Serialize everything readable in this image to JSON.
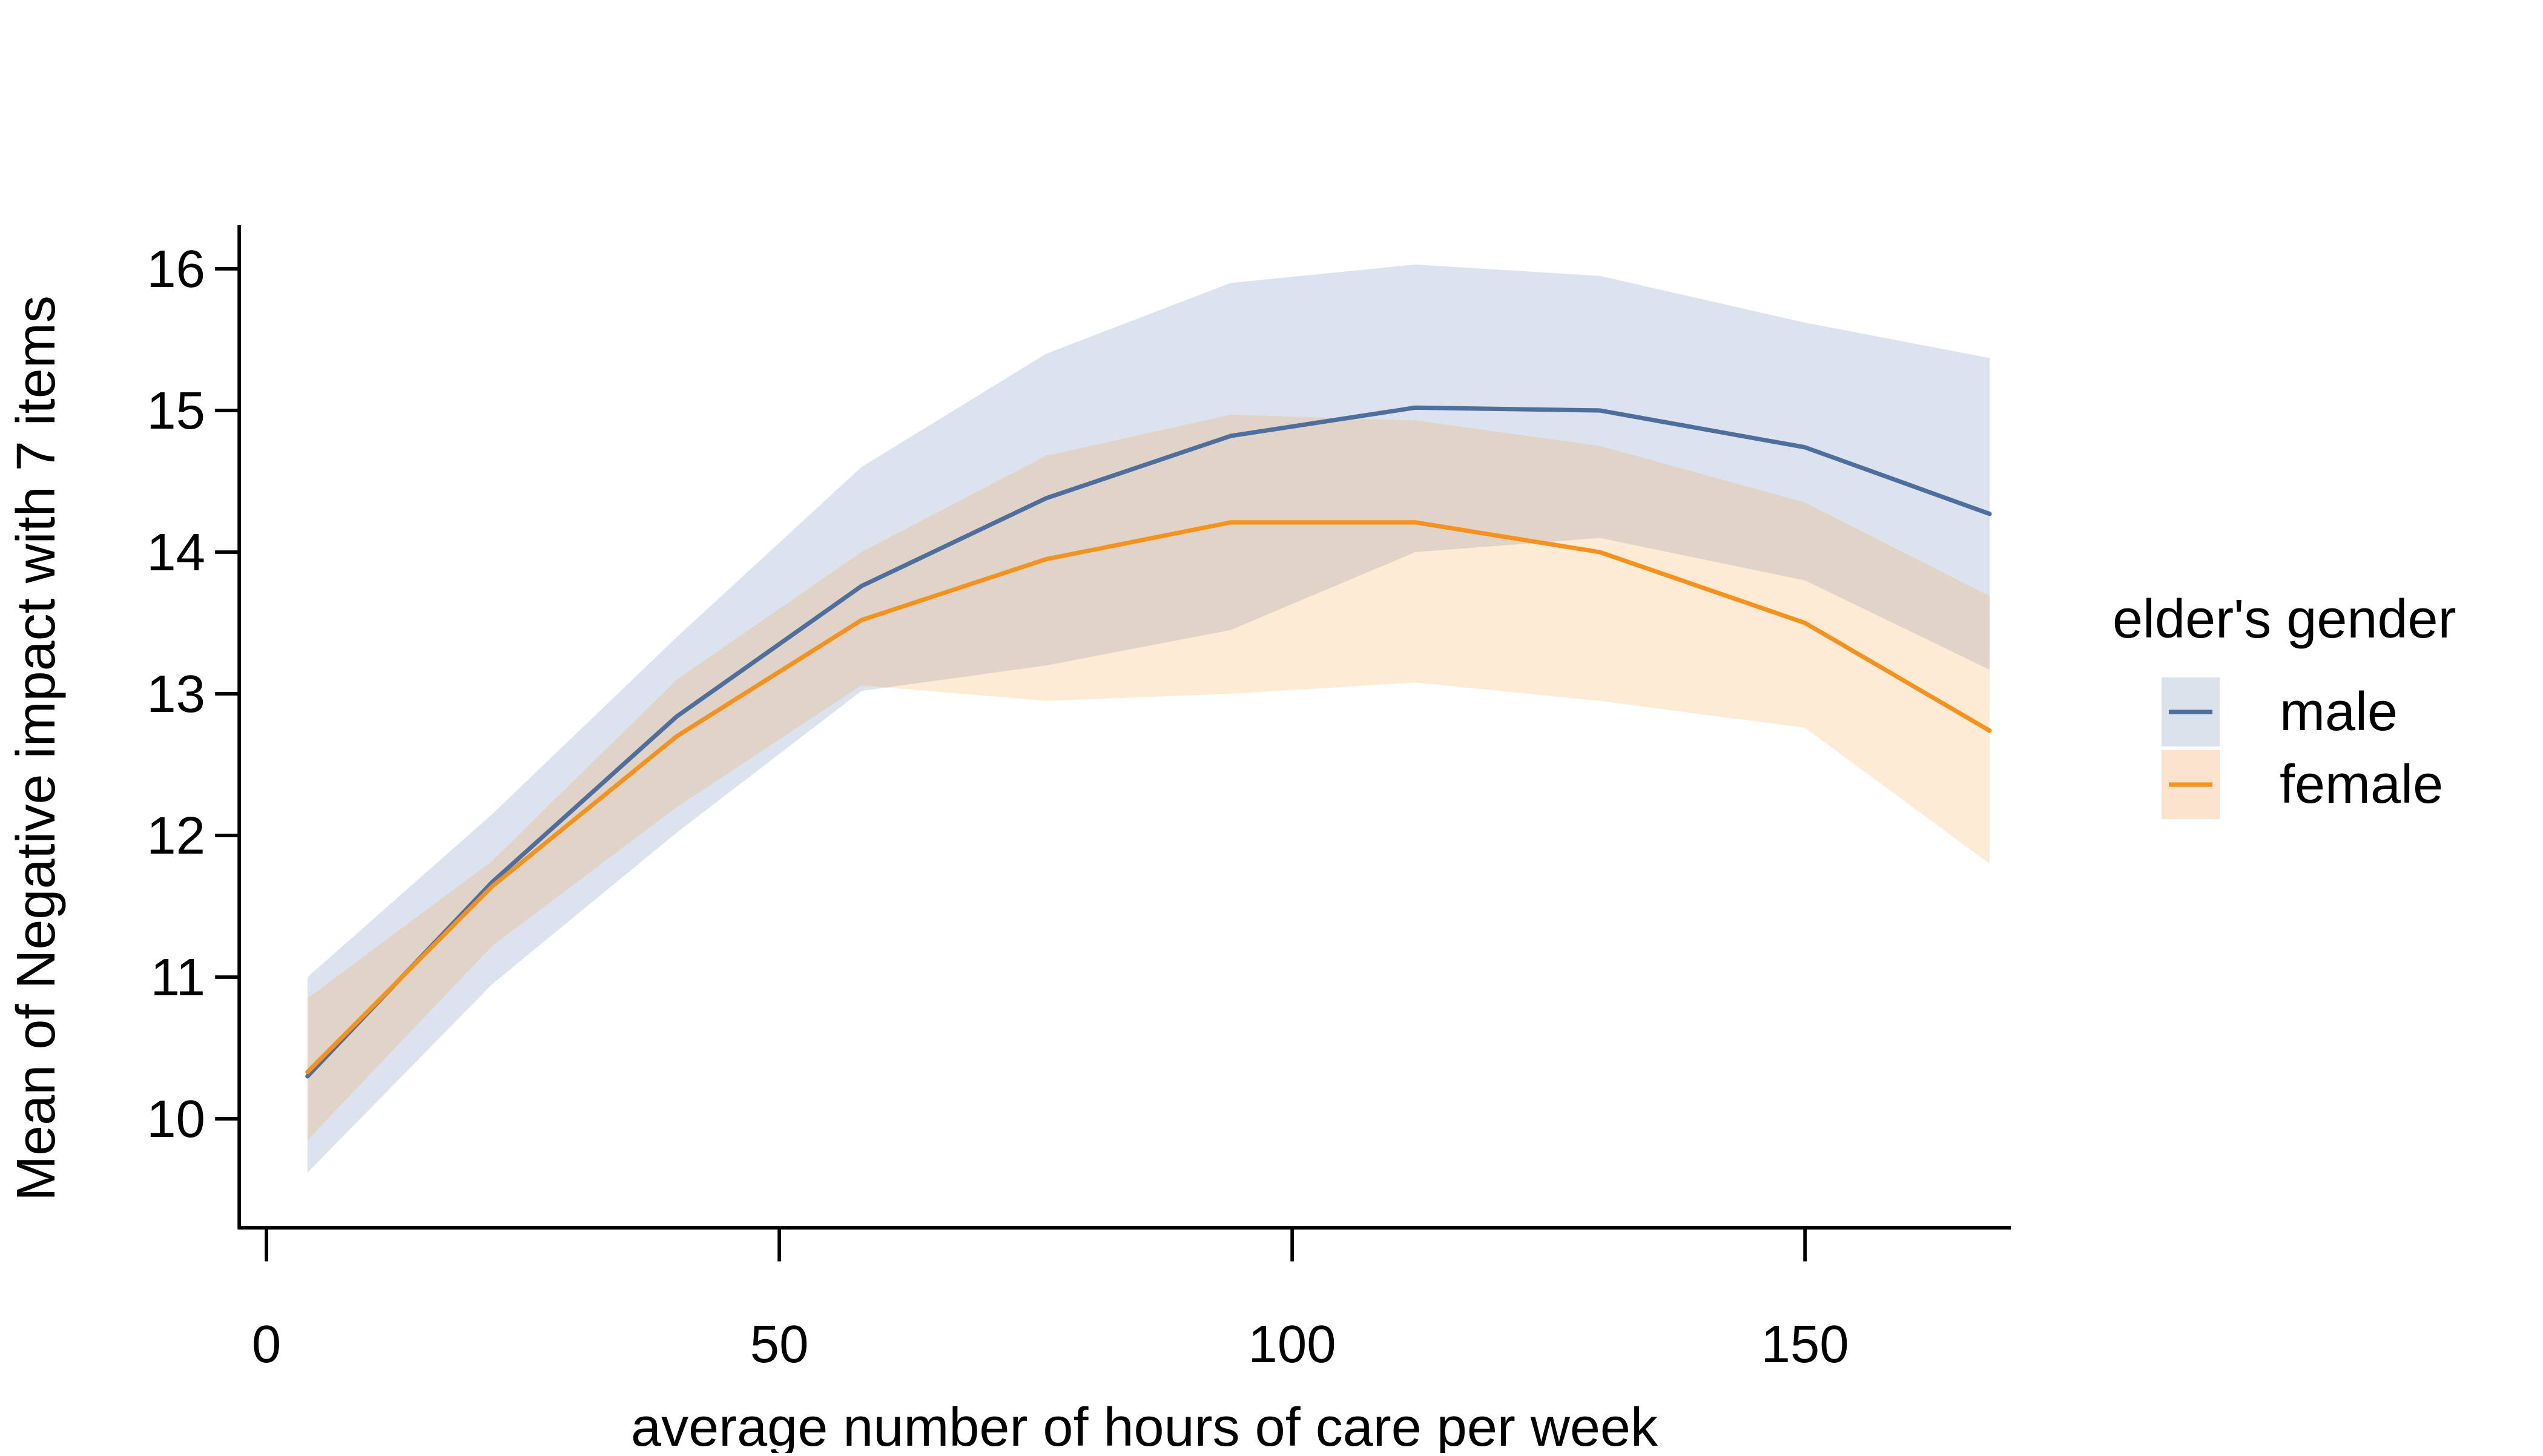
{
  "chart_data": {
    "type": "line",
    "title": "",
    "xlabel": "average number of hours of care per week",
    "ylabel": "Mean of Negative impact with 7 items",
    "x_ticks": [
      0,
      50,
      100,
      150
    ],
    "y_ticks": [
      16,
      15,
      14,
      13,
      12,
      11,
      10
    ],
    "x_axis_range": [
      0,
      170
    ],
    "y_axis_range": [
      9.3,
      16.45
    ],
    "grid": "off",
    "legend_position": "right-middle",
    "x": [
      4,
      22,
      40,
      58,
      76,
      94,
      112,
      130,
      150,
      168
    ],
    "series": [
      {
        "name": "male",
        "line_color": "#4e6f9e",
        "band_fill": "#dce3ee",
        "swatch_fill": "#dbe2ec",
        "values": [
          10.3,
          11.67,
          12.84,
          13.76,
          14.38,
          14.82,
          15.02,
          15.0,
          14.74,
          14.27
        ],
        "ci_upper": [
          11.0,
          12.15,
          13.4,
          14.6,
          15.4,
          15.9,
          16.03,
          15.95,
          15.62,
          15.37
        ],
        "ci_lower": [
          9.62,
          10.95,
          12.02,
          13.02,
          13.2,
          13.45,
          14.0,
          14.1,
          13.8,
          13.17
        ]
      },
      {
        "name": "female",
        "line_color": "#f5921e",
        "band_fill": "rgba(245,146,30,0.18)",
        "swatch_fill": "#fbe3cd",
        "values": [
          10.33,
          11.64,
          12.7,
          13.52,
          13.95,
          14.21,
          14.21,
          14.0,
          13.5,
          12.74
        ],
        "ci_upper": [
          10.85,
          11.82,
          13.1,
          14.0,
          14.68,
          14.97,
          14.93,
          14.75,
          14.35,
          13.69
        ],
        "ci_lower": [
          9.85,
          11.22,
          12.2,
          13.06,
          12.95,
          13.0,
          13.08,
          12.95,
          12.76,
          11.8
        ]
      }
    ],
    "legend": {
      "title": "elder's gender",
      "entries": [
        "male",
        "female"
      ]
    }
  }
}
